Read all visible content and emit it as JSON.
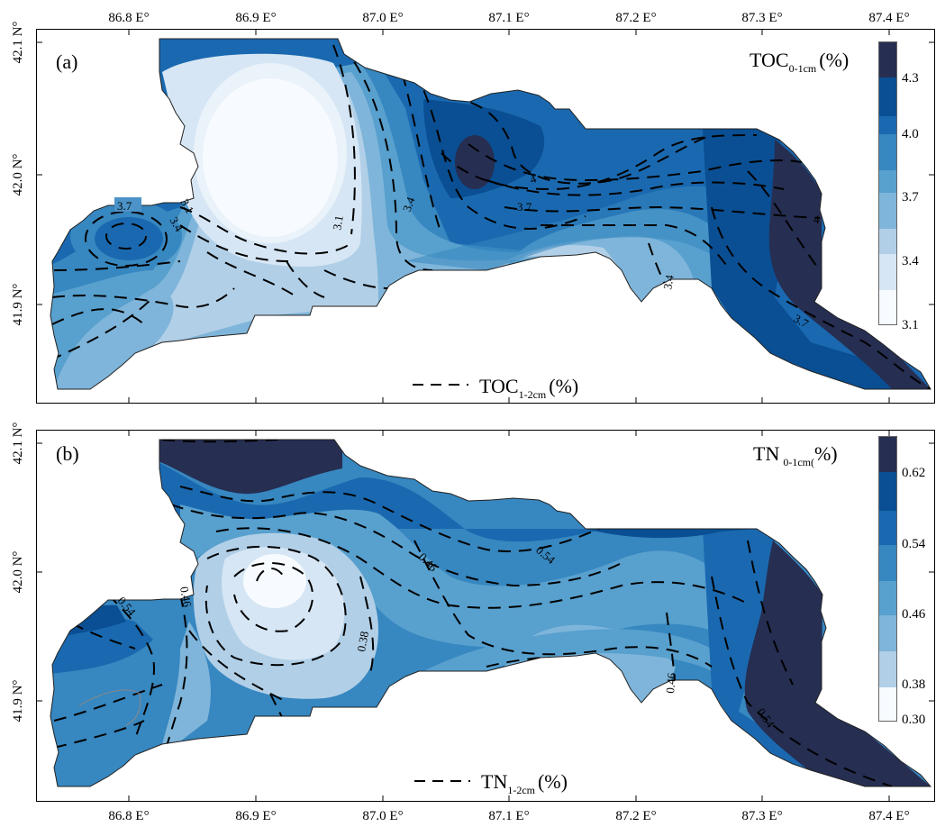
{
  "x_ticks": [
    "86.8 E°",
    "86.9 E°",
    "87.0 E°",
    "87.1 E°",
    "87.2 E°",
    "87.3 E°",
    "87.4 E°"
  ],
  "y_ticks": [
    "42.1 N°",
    "42.0 N°",
    "41.9 N°"
  ],
  "panels": [
    {
      "label": "(a)",
      "title_main": "TOC",
      "title_sub": "0-1cm",
      "title_unit": "(%)",
      "legend_main": "TOC",
      "legend_sub": "1-2cm",
      "legend_unit": "(%)",
      "colorbar_ticks": [
        "4.3",
        "4.0",
        "3.7",
        "3.4",
        "3.1"
      ],
      "contour_labels": [
        "3.7",
        "3.1",
        "3.4",
        "3.1",
        "3.4",
        "3.7",
        "4",
        "4",
        "3.4",
        "3.7"
      ]
    },
    {
      "label": "(b)",
      "title_main": "TN",
      "title_sub": "0-1cm(",
      "title_unit": "%)",
      "legend_main": "TN",
      "legend_sub": "1-2cm",
      "legend_unit": "(%)",
      "colorbar_ticks": [
        "0.62",
        "0.54",
        "0.46",
        "0.38",
        "0.30"
      ],
      "contour_labels": [
        "0.54",
        "0.46",
        "0.46",
        "0.54",
        "0.38",
        "0.46",
        "0.54"
      ]
    }
  ],
  "colors": {
    "levels": [
      "#f7fbff",
      "#d6e6f4",
      "#b1cfe7",
      "#7fb5da",
      "#58a0ce",
      "#3787c0",
      "#1a69b0",
      "#0a4f93",
      "#262e52"
    ]
  }
}
